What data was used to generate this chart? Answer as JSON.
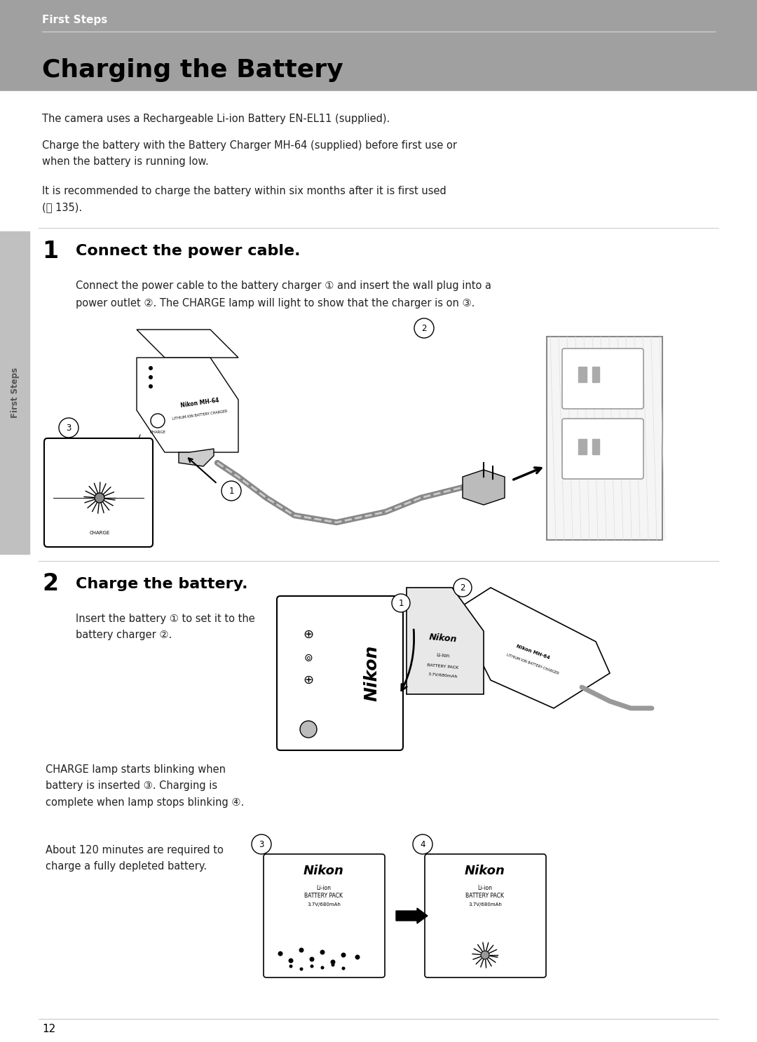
{
  "bg_color": "#ffffff",
  "page_bg": "#f0f0f0",
  "header_bg": "#a0a0a0",
  "header_text": "First Steps",
  "header_text_color": "#ffffff",
  "title": "Charging the Battery",
  "title_color": "#000000",
  "body_text_color": "#222222",
  "sidebar_bg": "#b8b8b8",
  "sidebar_text": "First Steps",
  "sidebar_text_color": "#333333",
  "para1": "The camera uses a Rechargeable Li-ion Battery EN-EL11 (supplied).",
  "para2": "Charge the battery with the Battery Charger MH-64 (supplied) before first use or\nwhen the battery is running low.",
  "para3": "It is recommended to charge the battery within six months after it is first used\n(ⓧ 135).",
  "step1_num": "1",
  "step1_title": "Connect the power cable.",
  "step1_body": "Connect the power cable to the battery charger ① and insert the wall plug into a\npower outlet ②. The CHARGE lamp will light to show that the charger is on ③.",
  "step2_num": "2",
  "step2_title": "Charge the battery.",
  "step2_body1": "Insert the battery ① to set it to the\nbattery charger ②.",
  "step2_body2": "CHARGE lamp starts blinking when\nbattery is inserted ③. Charging is\ncomplete when lamp stops blinking ④.",
  "step2_body3": "About 120 minutes are required to\ncharge a fully depleted battery.",
  "page_num": "12",
  "line_color": "#aaaaaa"
}
